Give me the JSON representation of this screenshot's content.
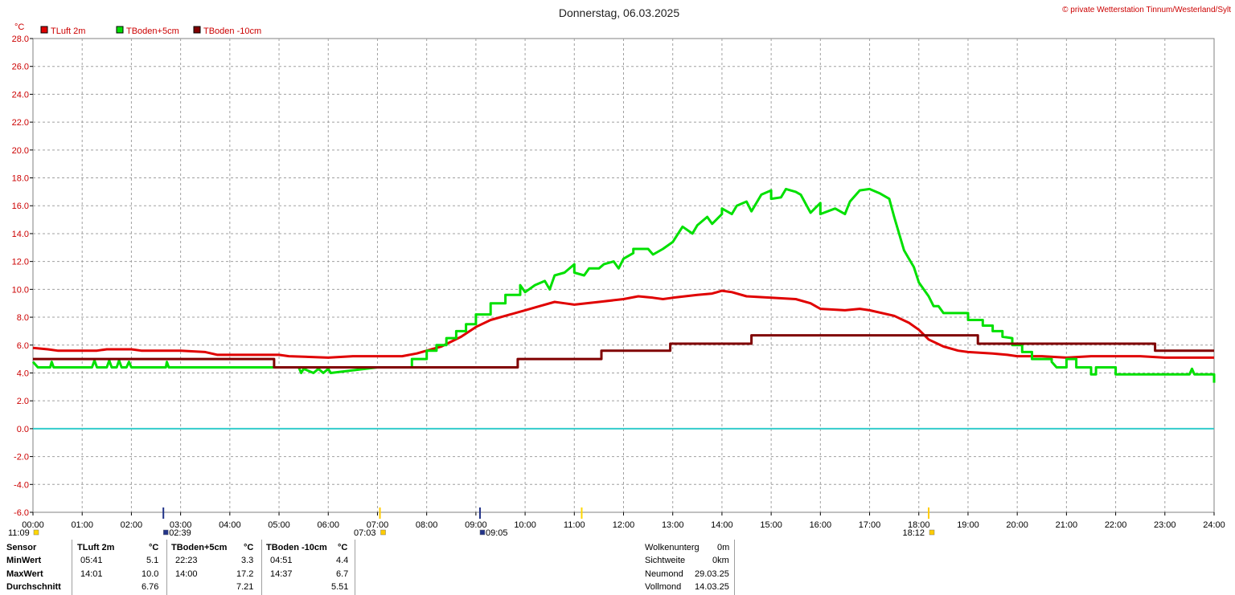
{
  "header": {
    "date": "Donnerstag, 06.03.2025",
    "copyright": "© private Wetterstation Tinnum/Westerland/Sylt"
  },
  "chart_data": {
    "type": "line",
    "title": "Donnerstag, 06.03.2025",
    "ylabel": "°C",
    "ylim": [
      -6,
      28
    ],
    "yticks": [
      "28.0",
      "26.0",
      "24.0",
      "22.0",
      "20.0",
      "18.0",
      "16.0",
      "14.0",
      "12.0",
      "10.0",
      "8.0",
      "6.0",
      "4.0",
      "2.0",
      "0.0",
      "-2.0",
      "-4.0",
      "-6.0"
    ],
    "xlim_hours": [
      0,
      24
    ],
    "xticks": [
      "00:00",
      "01:00",
      "02:00",
      "03:00",
      "04:00",
      "05:00",
      "06:00",
      "07:00",
      "08:00",
      "09:00",
      "10:00",
      "11:00",
      "12:00",
      "13:00",
      "14:00",
      "15:00",
      "16:00",
      "17:00",
      "18:00",
      "19:00",
      "20:00",
      "21:00",
      "22:00",
      "23:00",
      "24:00"
    ],
    "grid": true,
    "legend_position": "top-left",
    "zero_line_color": "#33cccc",
    "series": [
      {
        "name": "TLuft 2m",
        "color": "#e00000",
        "points": [
          [
            0,
            5.8
          ],
          [
            0.3,
            5.7
          ],
          [
            0.5,
            5.6
          ],
          [
            1.0,
            5.6
          ],
          [
            1.3,
            5.6
          ],
          [
            1.5,
            5.7
          ],
          [
            2.0,
            5.7
          ],
          [
            2.2,
            5.6
          ],
          [
            3.0,
            5.6
          ],
          [
            3.5,
            5.5
          ],
          [
            3.75,
            5.3
          ],
          [
            4.5,
            5.3
          ],
          [
            5.0,
            5.3
          ],
          [
            5.2,
            5.2
          ],
          [
            6.0,
            5.1
          ],
          [
            6.5,
            5.2
          ],
          [
            7.0,
            5.2
          ],
          [
            7.5,
            5.2
          ],
          [
            7.8,
            5.4
          ],
          [
            8.3,
            5.9
          ],
          [
            8.7,
            6.6
          ],
          [
            9.0,
            7.3
          ],
          [
            9.3,
            7.8
          ],
          [
            9.7,
            8.2
          ],
          [
            10.0,
            8.5
          ],
          [
            10.3,
            8.8
          ],
          [
            10.6,
            9.1
          ],
          [
            10.8,
            9.0
          ],
          [
            11.0,
            8.9
          ],
          [
            11.5,
            9.1
          ],
          [
            12.0,
            9.3
          ],
          [
            12.3,
            9.5
          ],
          [
            12.6,
            9.4
          ],
          [
            12.8,
            9.3
          ],
          [
            13.0,
            9.4
          ],
          [
            13.5,
            9.6
          ],
          [
            13.8,
            9.7
          ],
          [
            14.0,
            9.9
          ],
          [
            14.2,
            9.8
          ],
          [
            14.5,
            9.5
          ],
          [
            15.0,
            9.4
          ],
          [
            15.5,
            9.3
          ],
          [
            15.8,
            9.0
          ],
          [
            16.0,
            8.6
          ],
          [
            16.5,
            8.5
          ],
          [
            16.8,
            8.6
          ],
          [
            17.0,
            8.5
          ],
          [
            17.5,
            8.1
          ],
          [
            17.8,
            7.6
          ],
          [
            18.0,
            7.1
          ],
          [
            18.2,
            6.4
          ],
          [
            18.5,
            5.9
          ],
          [
            18.8,
            5.6
          ],
          [
            19.0,
            5.5
          ],
          [
            19.5,
            5.4
          ],
          [
            19.8,
            5.3
          ],
          [
            20.0,
            5.2
          ],
          [
            20.5,
            5.2
          ],
          [
            21.0,
            5.1
          ],
          [
            21.5,
            5.2
          ],
          [
            22.0,
            5.2
          ],
          [
            22.5,
            5.2
          ],
          [
            23.0,
            5.1
          ],
          [
            23.5,
            5.1
          ],
          [
            24.0,
            5.1
          ]
        ]
      },
      {
        "name": "TBoden+5cm",
        "color": "#00e000",
        "points": [
          [
            0,
            4.8
          ],
          [
            0.1,
            4.4
          ],
          [
            0.35,
            4.4
          ],
          [
            0.38,
            4.8
          ],
          [
            0.42,
            4.4
          ],
          [
            1.2,
            4.4
          ],
          [
            1.25,
            4.9
          ],
          [
            1.3,
            4.4
          ],
          [
            1.5,
            4.4
          ],
          [
            1.55,
            4.9
          ],
          [
            1.6,
            4.4
          ],
          [
            1.7,
            4.4
          ],
          [
            1.75,
            4.9
          ],
          [
            1.8,
            4.4
          ],
          [
            1.9,
            4.4
          ],
          [
            1.95,
            4.8
          ],
          [
            2.0,
            4.4
          ],
          [
            2.7,
            4.4
          ],
          [
            2.72,
            4.8
          ],
          [
            2.76,
            4.4
          ],
          [
            5.0,
            4.4
          ],
          [
            5.4,
            4.4
          ],
          [
            5.45,
            4.0
          ],
          [
            5.5,
            4.3
          ],
          [
            5.7,
            4.0
          ],
          [
            5.8,
            4.3
          ],
          [
            5.9,
            4.0
          ],
          [
            6.0,
            4.3
          ],
          [
            6.05,
            4.0
          ],
          [
            7.0,
            4.4
          ],
          [
            7.7,
            4.4
          ],
          [
            7.7,
            5.0
          ],
          [
            8.0,
            5.0
          ],
          [
            8.0,
            5.6
          ],
          [
            8.2,
            5.6
          ],
          [
            8.2,
            6.0
          ],
          [
            8.4,
            6.0
          ],
          [
            8.4,
            6.5
          ],
          [
            8.6,
            6.5
          ],
          [
            8.6,
            7.0
          ],
          [
            8.8,
            7.0
          ],
          [
            8.8,
            7.5
          ],
          [
            9.0,
            7.5
          ],
          [
            9.0,
            8.2
          ],
          [
            9.3,
            8.2
          ],
          [
            9.3,
            9.0
          ],
          [
            9.6,
            9.0
          ],
          [
            9.6,
            9.6
          ],
          [
            9.9,
            9.6
          ],
          [
            9.9,
            10.3
          ],
          [
            10.0,
            9.8
          ],
          [
            10.2,
            10.3
          ],
          [
            10.4,
            10.6
          ],
          [
            10.5,
            10.0
          ],
          [
            10.6,
            11.0
          ],
          [
            10.8,
            11.2
          ],
          [
            11.0,
            11.8
          ],
          [
            11.0,
            11.2
          ],
          [
            11.2,
            11.0
          ],
          [
            11.3,
            11.5
          ],
          [
            11.5,
            11.5
          ],
          [
            11.6,
            11.8
          ],
          [
            11.8,
            12.0
          ],
          [
            11.9,
            11.5
          ],
          [
            12.0,
            12.2
          ],
          [
            12.2,
            12.6
          ],
          [
            12.2,
            12.9
          ],
          [
            12.5,
            12.9
          ],
          [
            12.6,
            12.5
          ],
          [
            12.8,
            12.9
          ],
          [
            13.0,
            13.4
          ],
          [
            13.2,
            14.5
          ],
          [
            13.4,
            14.0
          ],
          [
            13.5,
            14.6
          ],
          [
            13.7,
            15.2
          ],
          [
            13.8,
            14.7
          ],
          [
            14.0,
            15.4
          ],
          [
            14.0,
            15.8
          ],
          [
            14.2,
            15.4
          ],
          [
            14.3,
            16.0
          ],
          [
            14.5,
            16.3
          ],
          [
            14.6,
            15.6
          ],
          [
            14.8,
            16.8
          ],
          [
            15.0,
            17.1
          ],
          [
            15.0,
            16.5
          ],
          [
            15.2,
            16.6
          ],
          [
            15.3,
            17.2
          ],
          [
            15.5,
            17.0
          ],
          [
            15.6,
            16.8
          ],
          [
            15.8,
            15.5
          ],
          [
            16.0,
            16.2
          ],
          [
            16.0,
            15.4
          ],
          [
            16.3,
            15.8
          ],
          [
            16.5,
            15.4
          ],
          [
            16.6,
            16.3
          ],
          [
            16.8,
            17.1
          ],
          [
            17.0,
            17.2
          ],
          [
            17.2,
            16.9
          ],
          [
            17.4,
            16.5
          ],
          [
            17.5,
            15.2
          ],
          [
            17.7,
            12.8
          ],
          [
            17.8,
            12.2
          ],
          [
            17.9,
            11.6
          ],
          [
            18.0,
            10.5
          ],
          [
            18.2,
            9.5
          ],
          [
            18.3,
            8.8
          ],
          [
            18.4,
            8.8
          ],
          [
            18.5,
            8.3
          ],
          [
            19.0,
            8.3
          ],
          [
            19.0,
            7.8
          ],
          [
            19.3,
            7.8
          ],
          [
            19.3,
            7.4
          ],
          [
            19.5,
            7.4
          ],
          [
            19.5,
            7.0
          ],
          [
            19.7,
            7.0
          ],
          [
            19.7,
            6.6
          ],
          [
            19.9,
            6.5
          ],
          [
            19.9,
            6.0
          ],
          [
            20.1,
            6.0
          ],
          [
            20.1,
            5.5
          ],
          [
            20.3,
            5.5
          ],
          [
            20.3,
            5.0
          ],
          [
            20.7,
            5.0
          ],
          [
            20.7,
            4.8
          ],
          [
            20.8,
            4.4
          ],
          [
            21.0,
            4.4
          ],
          [
            21.0,
            5.0
          ],
          [
            21.2,
            5.0
          ],
          [
            21.2,
            4.4
          ],
          [
            21.5,
            4.4
          ],
          [
            21.5,
            3.9
          ],
          [
            21.6,
            3.9
          ],
          [
            21.6,
            4.4
          ],
          [
            22.0,
            4.4
          ],
          [
            22.0,
            3.9
          ],
          [
            23.0,
            3.9
          ],
          [
            23.5,
            3.9
          ],
          [
            23.55,
            4.3
          ],
          [
            23.6,
            3.9
          ],
          [
            24.0,
            3.9
          ],
          [
            24.0,
            3.3
          ],
          [
            24.0,
            3.3
          ]
        ]
      },
      {
        "name": "TBoden -10cm",
        "color": "#800000",
        "points": [
          [
            0,
            5.0
          ],
          [
            4.9,
            5.0
          ],
          [
            4.9,
            4.4
          ],
          [
            9.85,
            4.4
          ],
          [
            9.85,
            5.0
          ],
          [
            11.55,
            5.0
          ],
          [
            11.55,
            5.6
          ],
          [
            12.95,
            5.6
          ],
          [
            12.95,
            6.1
          ],
          [
            14.6,
            6.1
          ],
          [
            14.6,
            6.7
          ],
          [
            19.2,
            6.7
          ],
          [
            19.2,
            6.1
          ],
          [
            22.8,
            6.1
          ],
          [
            22.8,
            5.6
          ],
          [
            24.0,
            5.6
          ]
        ]
      }
    ]
  },
  "sun_moon_marks": [
    {
      "label": "11:09",
      "kind": "moon-set-icon"
    },
    {
      "label": "02:39",
      "kind": "moon-rise-icon"
    },
    {
      "label": "07:03",
      "kind": "sunrise-icon"
    },
    {
      "label": "09:05",
      "kind": "moon-icon"
    },
    {
      "label": "18:12",
      "kind": "sunset-icon"
    }
  ],
  "stats": {
    "row_labels": [
      "Sensor",
      "MinWert",
      "MaxWert",
      "Durchschnitt"
    ],
    "sensors": [
      {
        "name": "TLuft 2m",
        "unit": "°C",
        "min_time": "05:41",
        "min": "5.1",
        "max_time": "14:01",
        "max": "10.0",
        "avg": "6.76"
      },
      {
        "name": "TBoden+5cm",
        "unit": "°C",
        "min_time": "22:23",
        "min": "3.3",
        "max_time": "14:00",
        "max": "17.2",
        "avg": "7.21"
      },
      {
        "name": "TBoden -10cm",
        "unit": "°C",
        "min_time": "04:51",
        "min": "4.4",
        "max_time": "14:37",
        "max": "6.7",
        "avg": "5.51"
      }
    ],
    "extra": [
      {
        "label": "Wolkenunterg",
        "value": "0m"
      },
      {
        "label": "Sichtweite",
        "value": "0km"
      },
      {
        "label": "Neumond",
        "value": "29.03.25"
      },
      {
        "label": "Vollmond",
        "value": "14.03.25"
      }
    ]
  }
}
